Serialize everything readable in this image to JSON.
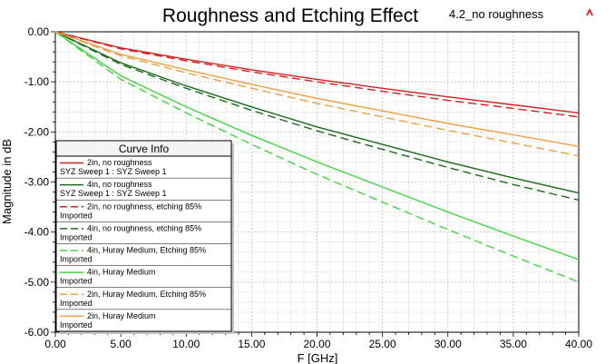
{
  "chart_data": {
    "type": "line",
    "title": "Roughness and Etching Effect",
    "project_label": "4.2_no roughness",
    "xlabel": "F [GHz]",
    "ylabel": "Magnitude in dB",
    "xlim": [
      0,
      40
    ],
    "ylim": [
      -6,
      0
    ],
    "x_ticks": [
      "0.00",
      "5.00",
      "10.00",
      "15.00",
      "20.00",
      "25.00",
      "30.00",
      "35.00",
      "40.00"
    ],
    "y_ticks": [
      "0.00",
      "-1.00",
      "-2.00",
      "-3.00",
      "-4.00",
      "-5.00",
      "-6.00"
    ],
    "grid": true,
    "legend_title": "Curve Info",
    "legend_position": "bottom-left",
    "series": [
      {
        "name": "2in, no roughness",
        "source": "SYZ Sweep 1 : SYZ Sweep 1",
        "color": "#d42020",
        "dash": "solid",
        "x": [
          0,
          5,
          10,
          15,
          20,
          25,
          30,
          35,
          40
        ],
        "values": [
          0,
          -0.32,
          -0.55,
          -0.76,
          -0.95,
          -1.13,
          -1.3,
          -1.46,
          -1.62
        ]
      },
      {
        "name": "4in, no roughness",
        "source": "SYZ Sweep 1 : SYZ Sweep 1",
        "color": "#1a6b1a",
        "dash": "solid",
        "x": [
          0,
          5,
          10,
          15,
          20,
          25,
          30,
          35,
          40
        ],
        "values": [
          0,
          -0.62,
          -1.08,
          -1.5,
          -1.9,
          -2.25,
          -2.6,
          -2.92,
          -3.22
        ]
      },
      {
        "name": "2in, no roughness, etching 85%",
        "source": "Imported",
        "color": "#d42020",
        "dash": "dashed",
        "x": [
          0,
          5,
          10,
          15,
          20,
          25,
          30,
          35,
          40
        ],
        "values": [
          0,
          -0.34,
          -0.58,
          -0.8,
          -1.0,
          -1.19,
          -1.37,
          -1.53,
          -1.7
        ]
      },
      {
        "name": "4in, no roughness, etching 85%",
        "source": "Imported",
        "color": "#1a6b1a",
        "dash": "dashed",
        "x": [
          0,
          5,
          10,
          15,
          20,
          25,
          30,
          35,
          40
        ],
        "values": [
          0,
          -0.65,
          -1.13,
          -1.57,
          -1.98,
          -2.35,
          -2.71,
          -3.05,
          -3.36
        ]
      },
      {
        "name": "4in, Huray Medium, Etching 85%",
        "source": "Imported",
        "color": "#3ed83e",
        "dash": "dashed",
        "x": [
          0,
          5,
          10,
          15,
          20,
          25,
          30,
          35,
          40
        ],
        "values": [
          0,
          -0.95,
          -1.62,
          -2.25,
          -2.85,
          -3.4,
          -3.95,
          -4.48,
          -5.0
        ]
      },
      {
        "name": "4in, Huray Medium",
        "source": "Imported",
        "color": "#3ed83e",
        "dash": "solid",
        "x": [
          0,
          5,
          10,
          15,
          20,
          25,
          30,
          35,
          40
        ],
        "values": [
          0,
          -0.88,
          -1.5,
          -2.07,
          -2.6,
          -3.1,
          -3.6,
          -4.08,
          -4.55
        ]
      },
      {
        "name": "2in, Huray Medium, Etching 85%",
        "source": "Imported",
        "color": "#f0a040",
        "dash": "dashed",
        "x": [
          0,
          5,
          10,
          15,
          20,
          25,
          30,
          35,
          40
        ],
        "values": [
          0,
          -0.48,
          -0.82,
          -1.13,
          -1.43,
          -1.7,
          -1.97,
          -2.22,
          -2.48
        ]
      },
      {
        "name": "2in, Huray Medium",
        "source": "Imported",
        "color": "#f0a040",
        "dash": "solid",
        "x": [
          0,
          5,
          10,
          15,
          20,
          25,
          30,
          35,
          40
        ],
        "values": [
          0,
          -0.45,
          -0.76,
          -1.05,
          -1.33,
          -1.58,
          -1.83,
          -2.06,
          -2.29
        ]
      }
    ]
  }
}
